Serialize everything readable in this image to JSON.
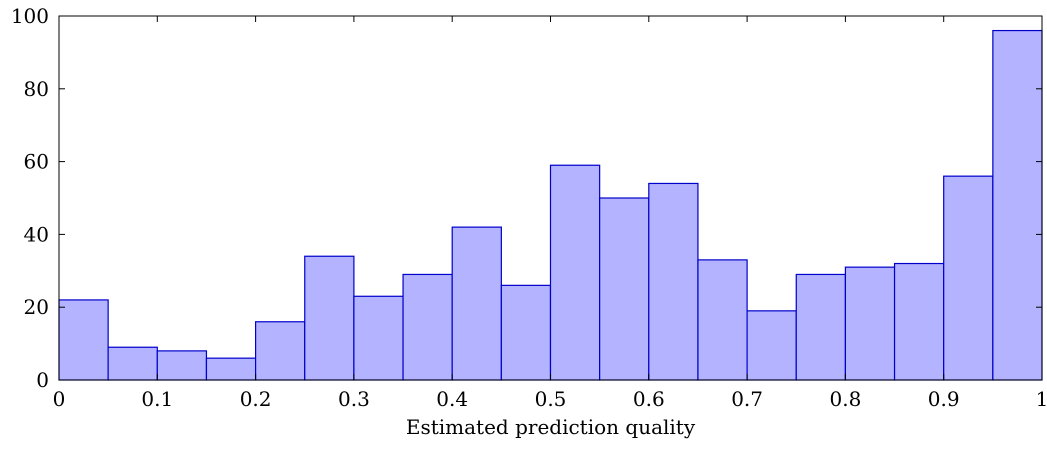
{
  "chart_data": {
    "type": "bar",
    "title": "",
    "xlabel": "Estimated prediction quality",
    "ylabel": "",
    "bin_edges": [
      0,
      0.05,
      0.1,
      0.15,
      0.2,
      0.25,
      0.3,
      0.35,
      0.4,
      0.45,
      0.5,
      0.55,
      0.6,
      0.65,
      0.7,
      0.75,
      0.8,
      0.85,
      0.9,
      0.95,
      1.0
    ],
    "values": [
      22,
      9,
      8,
      6,
      16,
      34,
      23,
      29,
      42,
      26,
      59,
      50,
      54,
      33,
      19,
      29,
      31,
      32,
      56,
      96
    ],
    "xlim": [
      0,
      1
    ],
    "ylim": [
      0,
      100
    ],
    "xticks": [
      "0",
      "0.1",
      "0.2",
      "0.3",
      "0.4",
      "0.5",
      "0.6",
      "0.7",
      "0.8",
      "0.9",
      "1"
    ],
    "yticks": [
      "0",
      "20",
      "40",
      "60",
      "80",
      "100"
    ],
    "grid": false,
    "colors": {
      "fill": "#b3b3ff",
      "stroke": "#0000cc"
    }
  }
}
